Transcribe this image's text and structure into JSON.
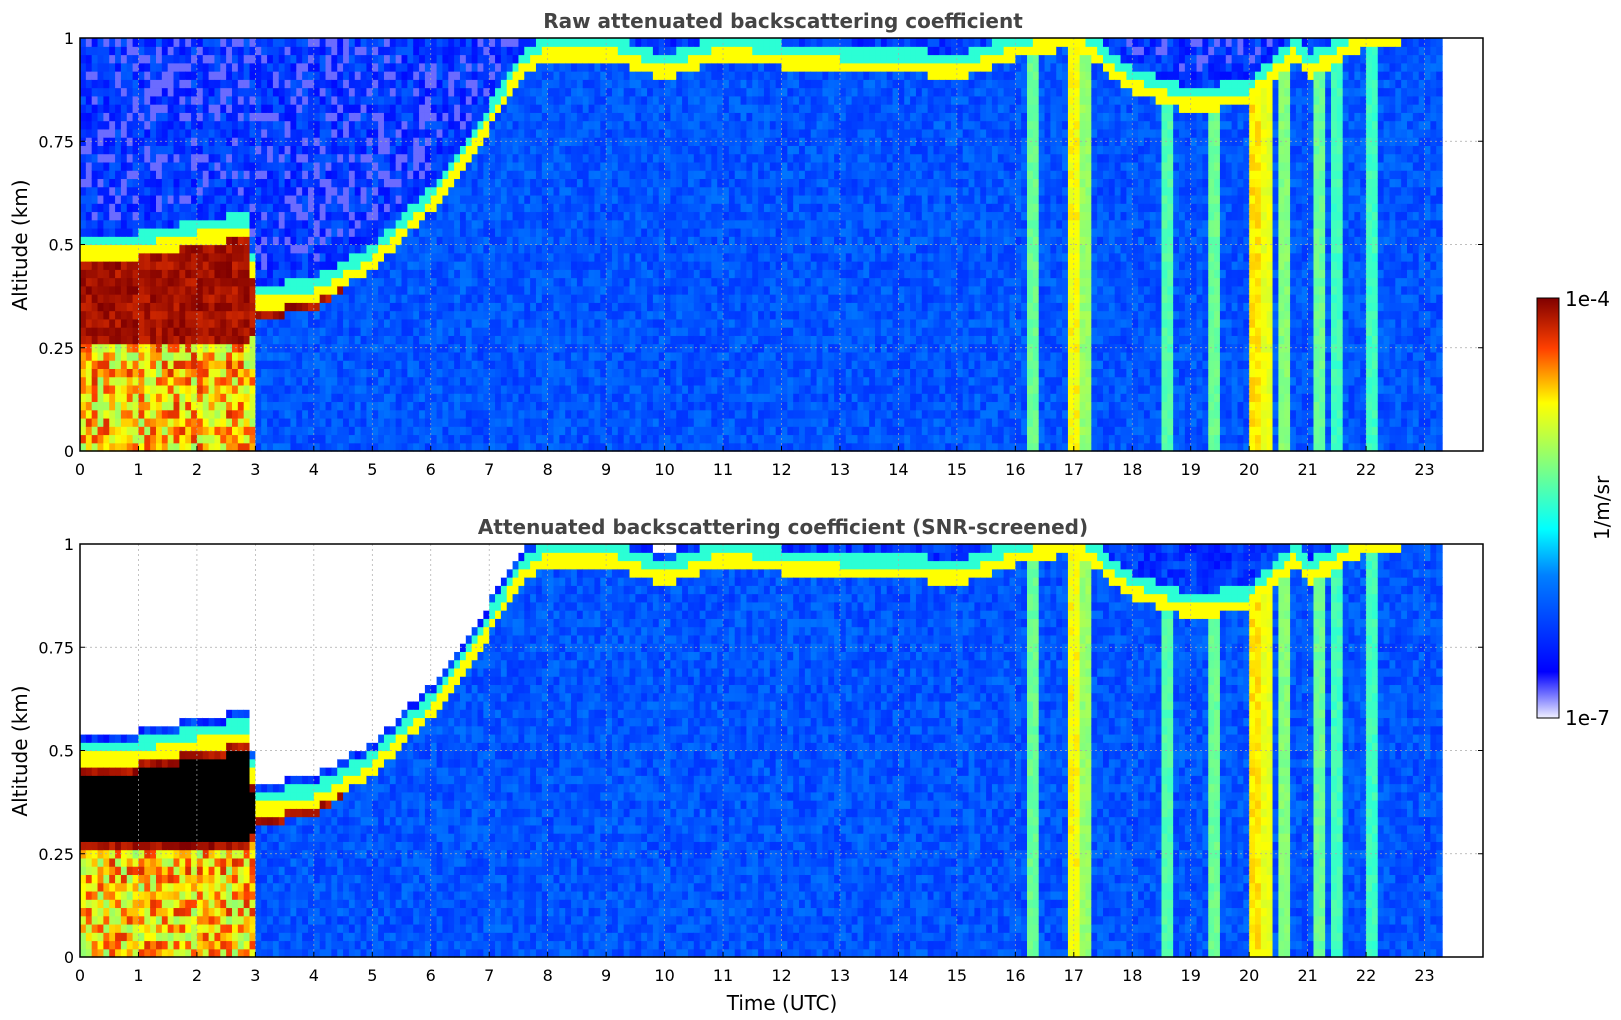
{
  "chart_data": [
    {
      "type": "heatmap",
      "title": "Raw attenuated backscattering coefficient",
      "xlabel": "",
      "ylabel": "Altitude (km)",
      "xlim": [
        0,
        24
      ],
      "ylim": [
        0,
        1
      ],
      "x_ticks": [
        "0",
        "1",
        "2",
        "3",
        "4",
        "5",
        "6",
        "7",
        "8",
        "9",
        "10",
        "11",
        "12",
        "13",
        "14",
        "15",
        "16",
        "17",
        "18",
        "19",
        "20",
        "21",
        "22",
        "23"
      ],
      "y_ticks": [
        "0",
        "0.25",
        "0.5",
        "0.75",
        "1"
      ],
      "data_end_time": 23.3,
      "grid": true,
      "screened": false,
      "layer_top_km": [
        [
          0,
          0.47
        ],
        [
          1,
          0.47
        ],
        [
          2,
          0.5
        ],
        [
          2.9,
          0.52
        ],
        [
          3,
          0.34
        ],
        [
          4,
          0.36
        ],
        [
          5,
          0.44
        ],
        [
          6,
          0.58
        ],
        [
          7,
          0.78
        ],
        [
          7.5,
          0.9
        ],
        [
          8,
          0.95
        ],
        [
          9,
          0.95
        ],
        [
          10,
          0.9
        ],
        [
          11,
          0.95
        ],
        [
          12,
          0.93
        ],
        [
          13,
          0.92
        ],
        [
          14,
          0.92
        ],
        [
          15,
          0.9
        ],
        [
          16,
          0.95
        ],
        [
          17,
          0.98
        ],
        [
          18,
          0.87
        ],
        [
          19,
          0.82
        ],
        [
          20,
          0.84
        ],
        [
          20.8,
          0.95
        ],
        [
          21,
          0.9
        ],
        [
          22,
          0.98
        ],
        [
          23.3,
          1.0
        ]
      ],
      "layer_bottom_km": [
        [
          0,
          0.25
        ],
        [
          2.9,
          0.25
        ],
        [
          3,
          0.32
        ],
        [
          4,
          0.34
        ],
        [
          5,
          0.44
        ],
        [
          6,
          0.58
        ],
        [
          7,
          0.78
        ],
        [
          7.5,
          0.9
        ],
        [
          8,
          0.95
        ],
        [
          9,
          0.95
        ],
        [
          10,
          0.9
        ],
        [
          11,
          0.95
        ],
        [
          12,
          0.93
        ],
        [
          13,
          0.92
        ],
        [
          14,
          0.92
        ],
        [
          15,
          0.9
        ],
        [
          16,
          0.95
        ],
        [
          17,
          0.98
        ],
        [
          18,
          0.87
        ],
        [
          19,
          0.82
        ],
        [
          20,
          0.84
        ],
        [
          20.8,
          0.95
        ],
        [
          21,
          0.9
        ],
        [
          22,
          0.98
        ],
        [
          23.3,
          1.0
        ]
      ]
    },
    {
      "type": "heatmap",
      "title": "Attenuated backscattering coefficient (SNR-screened)",
      "xlabel": "Time (UTC)",
      "ylabel": "Altitude (km)",
      "xlim": [
        0,
        24
      ],
      "ylim": [
        0,
        1
      ],
      "x_ticks": [
        "0",
        "1",
        "2",
        "3",
        "4",
        "5",
        "6",
        "7",
        "8",
        "9",
        "10",
        "11",
        "12",
        "13",
        "14",
        "15",
        "16",
        "17",
        "18",
        "19",
        "20",
        "21",
        "22",
        "23"
      ],
      "y_ticks": [
        "0",
        "0.25",
        "0.5",
        "0.75",
        "1"
      ],
      "data_end_time": 23.3,
      "grid": true,
      "screened": true
    }
  ],
  "colorbar": {
    "max_label": "1e-4",
    "min_label": "1e-7",
    "unit_label": "1/m/sr",
    "scale": "log",
    "range": [
      1e-07,
      0.0001
    ]
  }
}
